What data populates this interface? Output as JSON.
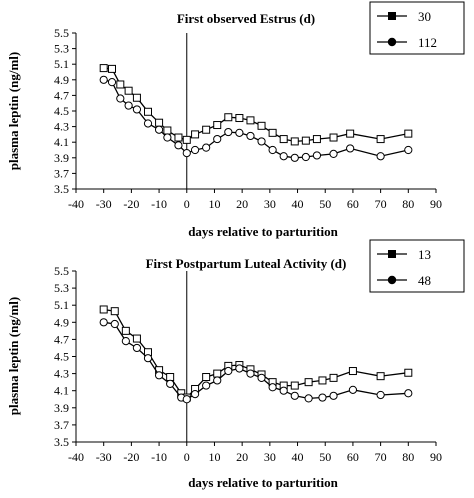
{
  "chart_data": [
    {
      "type": "line",
      "title": "First observed Estrus (d)",
      "xlabel": "days relative to parturition",
      "ylabel": "plasma leptin (ng/ml)",
      "xlim": [
        -40,
        90
      ],
      "ylim": [
        3.5,
        5.5
      ],
      "xticks": [
        "-40",
        "-30",
        "-20",
        "-10",
        "0",
        "10",
        "20",
        "30",
        "40",
        "50",
        "60",
        "70",
        "80",
        "90"
      ],
      "yticks": [
        "3.5",
        "3.7",
        "3.9",
        "4.1",
        "4.3",
        "4.5",
        "4.7",
        "4.9",
        "5.1",
        "5.3",
        "5.5"
      ],
      "vline_x": 0,
      "legend_position": "top-right",
      "series": [
        {
          "name": "30",
          "marker": "square",
          "x": [
            -30,
            -27,
            -24,
            -21,
            -18,
            -14,
            -10,
            -7,
            -3,
            0,
            3,
            7,
            11,
            15,
            19,
            23,
            27,
            31,
            35,
            39,
            43,
            47,
            53,
            59,
            70,
            80
          ],
          "y": [
            5.05,
            5.04,
            4.84,
            4.76,
            4.67,
            4.49,
            4.35,
            4.25,
            4.16,
            4.13,
            4.2,
            4.26,
            4.32,
            4.42,
            4.41,
            4.38,
            4.31,
            4.22,
            4.14,
            4.11,
            4.12,
            4.14,
            4.16,
            4.21,
            4.14,
            4.21
          ]
        },
        {
          "name": "112",
          "marker": "circle",
          "x": [
            -30,
            -27,
            -24,
            -21,
            -18,
            -14,
            -10,
            -7,
            -3,
            0,
            3,
            7,
            11,
            15,
            19,
            23,
            27,
            31,
            35,
            39,
            43,
            47,
            53,
            59,
            70,
            80
          ],
          "y": [
            4.9,
            4.87,
            4.66,
            4.57,
            4.52,
            4.34,
            4.26,
            4.16,
            4.06,
            3.96,
            4.0,
            4.03,
            4.14,
            4.23,
            4.22,
            4.18,
            4.11,
            4.0,
            3.92,
            3.9,
            3.91,
            3.93,
            3.95,
            4.02,
            3.92,
            4.0
          ]
        }
      ]
    },
    {
      "type": "line",
      "title": "First Postpartum Luteal Activity (d)",
      "xlabel": "days relative to parturition",
      "ylabel": "plasma leptin (ng/ml)",
      "xlim": [
        -40,
        90
      ],
      "ylim": [
        3.5,
        5.5
      ],
      "xticks": [
        "-40",
        "-30",
        "-20",
        "-10",
        "0",
        "10",
        "20",
        "30",
        "40",
        "50",
        "60",
        "70",
        "80",
        "90"
      ],
      "yticks": [
        "3.5",
        "3.7",
        "3.9",
        "4.1",
        "4.3",
        "4.5",
        "4.7",
        "4.9",
        "5.1",
        "5.3",
        "5.5"
      ],
      "vline_x": 0,
      "legend_position": "top-right",
      "series": [
        {
          "name": "13",
          "marker": "square",
          "x": [
            -30,
            -26,
            -22,
            -18,
            -14,
            -10,
            -6,
            -2,
            0,
            3,
            7,
            11,
            15,
            19,
            23,
            27,
            31,
            35,
            39,
            44,
            49,
            53,
            60,
            70,
            80
          ],
          "y": [
            5.05,
            5.03,
            4.8,
            4.71,
            4.55,
            4.34,
            4.26,
            4.07,
            4.02,
            4.12,
            4.26,
            4.3,
            4.39,
            4.4,
            4.35,
            4.29,
            4.2,
            4.16,
            4.16,
            4.2,
            4.22,
            4.25,
            4.33,
            4.27,
            4.31
          ]
        },
        {
          "name": "48",
          "marker": "circle",
          "x": [
            -30,
            -26,
            -22,
            -18,
            -14,
            -10,
            -6,
            -2,
            0,
            3,
            7,
            11,
            15,
            19,
            23,
            27,
            31,
            35,
            39,
            44,
            49,
            53,
            60,
            70,
            80
          ],
          "y": [
            4.9,
            4.88,
            4.68,
            4.6,
            4.48,
            4.28,
            4.18,
            4.02,
            4.0,
            4.06,
            4.16,
            4.22,
            4.33,
            4.36,
            4.3,
            4.25,
            4.14,
            4.1,
            4.04,
            4.01,
            4.02,
            4.04,
            4.11,
            4.05,
            4.07
          ]
        }
      ]
    }
  ]
}
